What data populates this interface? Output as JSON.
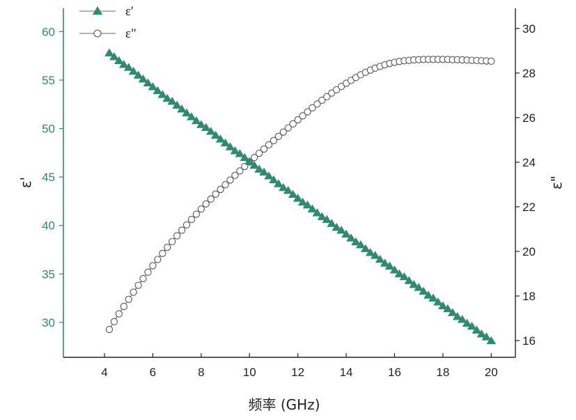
{
  "chart_data": {
    "type": "line",
    "title": "",
    "xlabel": "频率 (GHz)",
    "ylabel_left": "ε'",
    "ylabel_right": "ε\"",
    "xlim": [
      2.3,
      21.0
    ],
    "ylim_left": [
      26.4,
      62.4
    ],
    "ylim_right": [
      15.25,
      30.9
    ],
    "x_ticks": [
      "4",
      "6",
      "8",
      "10",
      "12",
      "14",
      "16",
      "18",
      "20"
    ],
    "y_left_ticks": [
      "30",
      "35",
      "40",
      "45",
      "50",
      "55",
      "60"
    ],
    "y_right_ticks": [
      "16",
      "18",
      "20",
      "22",
      "24",
      "26",
      "28",
      "30"
    ],
    "grid": false,
    "legend_position": "top-left",
    "colors": {
      "left_axis": "#2e8b6e",
      "series1": "#2e8b6e",
      "series2": "#555555",
      "right_axis": "#222222"
    },
    "x": [
      4.2,
      4.4,
      4.6,
      4.8,
      5.0,
      5.2,
      5.4,
      5.6,
      5.8,
      6.0,
      6.2,
      6.4,
      6.6,
      6.8,
      7.0,
      7.2,
      7.4,
      7.6,
      7.8,
      8.0,
      8.2,
      8.4,
      8.6,
      8.8,
      9.0,
      9.2,
      9.4,
      9.6,
      9.8,
      10.0,
      10.2,
      10.4,
      10.6,
      10.8,
      11.0,
      11.2,
      11.4,
      11.6,
      11.8,
      12.0,
      12.2,
      12.4,
      12.6,
      12.8,
      13.0,
      13.2,
      13.4,
      13.6,
      13.8,
      14.0,
      14.2,
      14.4,
      14.6,
      14.8,
      15.0,
      15.2,
      15.4,
      15.6,
      15.8,
      16.0,
      16.2,
      16.4,
      16.6,
      16.8,
      17.0,
      17.2,
      17.4,
      17.6,
      17.8,
      18.0,
      18.2,
      18.4,
      18.6,
      18.8,
      19.0,
      19.2,
      19.4,
      19.6,
      19.8,
      20.0
    ],
    "series": [
      {
        "name": "ε'",
        "axis": "left",
        "marker": "triangle",
        "values": [
          57.8,
          57.4,
          57.0,
          56.6,
          56.3,
          55.9,
          55.5,
          55.1,
          54.7,
          54.3,
          53.9,
          53.5,
          53.1,
          52.8,
          52.4,
          52.0,
          51.6,
          51.2,
          50.8,
          50.4,
          50.1,
          49.7,
          49.3,
          48.9,
          48.5,
          48.1,
          47.7,
          47.4,
          47.0,
          46.6,
          46.2,
          45.8,
          45.5,
          45.1,
          44.7,
          44.3,
          43.9,
          43.6,
          43.2,
          42.8,
          42.4,
          42.1,
          41.7,
          41.3,
          40.9,
          40.6,
          40.2,
          39.8,
          39.5,
          39.1,
          38.7,
          38.3,
          38.0,
          37.6,
          37.2,
          36.9,
          36.5,
          36.1,
          35.8,
          35.4,
          35.0,
          34.7,
          34.3,
          33.9,
          33.6,
          33.2,
          32.8,
          32.5,
          32.1,
          31.7,
          31.4,
          31.0,
          30.6,
          30.3,
          29.9,
          29.6,
          29.2,
          28.8,
          28.5,
          28.1
        ]
      },
      {
        "name": "ε\"",
        "axis": "right",
        "marker": "circle-open",
        "values": [
          16.5,
          16.85,
          17.2,
          17.53,
          17.85,
          18.17,
          18.48,
          18.78,
          19.07,
          19.36,
          19.64,
          19.91,
          20.18,
          20.44,
          20.7,
          20.95,
          21.19,
          21.43,
          21.67,
          21.9,
          22.13,
          22.35,
          22.57,
          22.78,
          22.99,
          23.2,
          23.41,
          23.61,
          23.81,
          24.01,
          24.21,
          24.4,
          24.59,
          24.78,
          24.97,
          25.16,
          25.35,
          25.54,
          25.72,
          25.9,
          26.08,
          26.26,
          26.44,
          26.61,
          26.78,
          26.94,
          27.1,
          27.25,
          27.4,
          27.54,
          27.67,
          27.8,
          27.92,
          28.03,
          28.13,
          28.22,
          28.3,
          28.37,
          28.43,
          28.48,
          28.52,
          28.55,
          28.57,
          28.59,
          28.6,
          28.61,
          28.61,
          28.61,
          28.61,
          28.61,
          28.61,
          28.6,
          28.6,
          28.59,
          28.58,
          28.57,
          28.56,
          28.55,
          28.54,
          28.53
        ]
      }
    ]
  }
}
